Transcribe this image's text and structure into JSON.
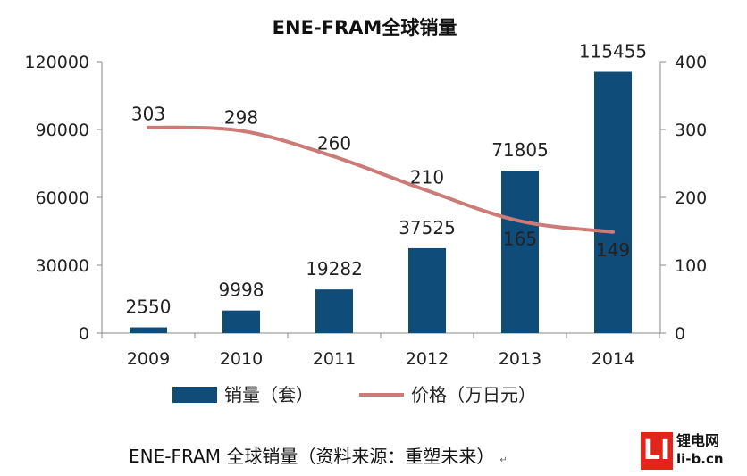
{
  "colors": {
    "bar": "#0f4c7a",
    "line": "#cc7b77",
    "axis": "#888888",
    "watermark": "#e1251b"
  },
  "caption": "ENE-FRAM 全球销量（资料来源：重塑未来）",
  "caption_mark": "↵",
  "watermark": {
    "logo": "LI",
    "cn": "锂电网",
    "en": "li-b.cn"
  },
  "chart_data": {
    "type": "bar",
    "title": "ENE-FRAM全球销量",
    "categories": [
      "2009",
      "2010",
      "2011",
      "2012",
      "2013",
      "2014"
    ],
    "series": [
      {
        "name": "销量（套）",
        "type": "bar",
        "axis": "left",
        "values": [
          2550,
          9998,
          19282,
          37525,
          71805,
          115455
        ]
      },
      {
        "name": "价格（万日元）",
        "type": "line",
        "axis": "right",
        "values": [
          303,
          298,
          260,
          210,
          165,
          149
        ]
      }
    ],
    "y_left": {
      "min": 0,
      "max": 120000,
      "ticks": [
        "0",
        "30000",
        "60000",
        "90000",
        "120000"
      ]
    },
    "y_right": {
      "min": 0,
      "max": 400,
      "ticks": [
        "0",
        "100",
        "200",
        "300",
        "400"
      ]
    },
    "legend_position": "bottom",
    "grid": false
  }
}
